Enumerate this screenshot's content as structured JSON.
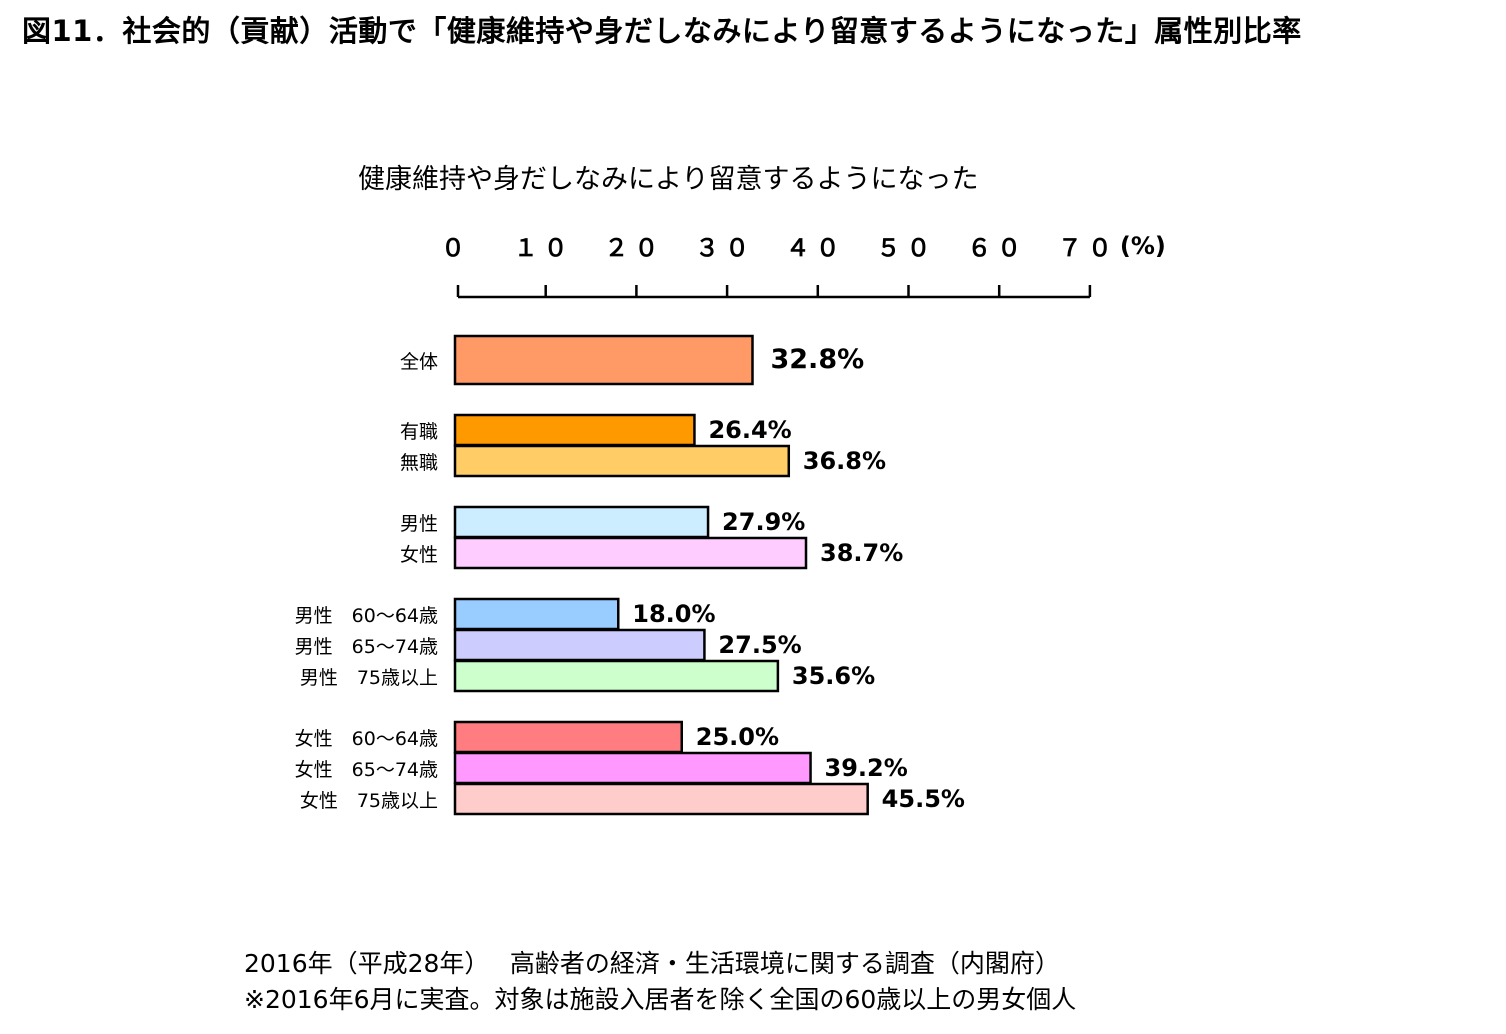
{
  "figure_title": "図11．社会的（貢献）活動で「健康維持や身だしなみにより留意するようになった」属性別比率",
  "chart_data": {
    "type": "bar",
    "orientation": "horizontal",
    "title": "健康維持や身だしなみにより留意するようになった",
    "xlim": [
      0,
      70
    ],
    "x_ticks": [
      "０",
      "１０",
      "２０",
      "３０",
      "４０",
      "５０",
      "６０",
      "７０"
    ],
    "x_tick_values": [
      0,
      10,
      20,
      30,
      40,
      50,
      60,
      70
    ],
    "x_unit": "(%)",
    "grid": false,
    "groups": [
      {
        "bars": [
          {
            "category": "全体",
            "value": 32.8,
            "label": "32.8%",
            "color": "#ff9966"
          }
        ]
      },
      {
        "bars": [
          {
            "category": "有職",
            "value": 26.4,
            "label": "26.4%",
            "color": "#ff9900"
          },
          {
            "category": "無職",
            "value": 36.8,
            "label": "36.8%",
            "color": "#ffcc66"
          }
        ]
      },
      {
        "bars": [
          {
            "category": "男性",
            "value": 27.9,
            "label": "27.9%",
            "color": "#ccecff"
          },
          {
            "category": "女性",
            "value": 38.7,
            "label": "38.7%",
            "color": "#ffccff"
          }
        ]
      },
      {
        "bars": [
          {
            "category": "男性　60～64歳",
            "value": 18.0,
            "label": "18.0%",
            "color": "#99ccff"
          },
          {
            "category": "男性　65～74歳",
            "value": 27.5,
            "label": "27.5%",
            "color": "#ccccff"
          },
          {
            "category": "男性　75歳以上",
            "value": 35.6,
            "label": "35.6%",
            "color": "#ccffcc"
          }
        ]
      },
      {
        "bars": [
          {
            "category": "女性　60～64歳",
            "value": 25.0,
            "label": "25.0%",
            "color": "#ff7c80"
          },
          {
            "category": "女性　65～74歳",
            "value": 39.2,
            "label": "39.2%",
            "color": "#ff99ff"
          },
          {
            "category": "女性　75歳以上",
            "value": 45.5,
            "label": "45.5%",
            "color": "#ffcccc"
          }
        ]
      }
    ]
  },
  "footnotes": {
    "line1": "2016年（平成28年）　 高齢者の経済・生活環境に関する調査（内閣府）",
    "line2": "※2016年6月に実査。対象は施設入居者を除く全国の60歳以上の男女個人"
  }
}
